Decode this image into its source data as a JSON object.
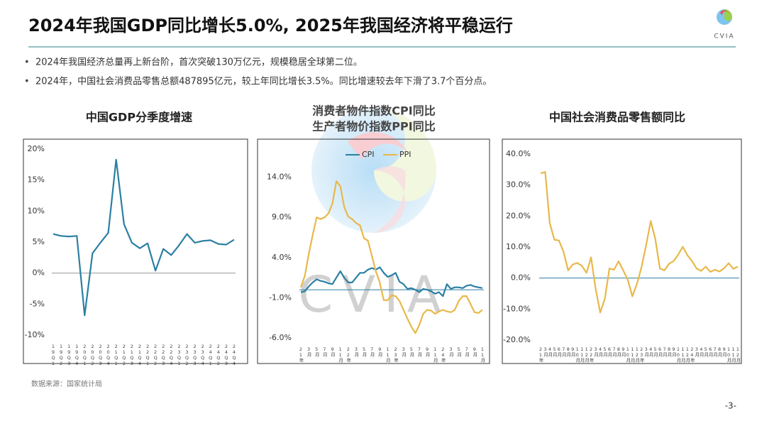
{
  "header": {
    "title": "2024年我国GDP同比增长5.0%, 2025年我国经济将平稳运行",
    "logo_text": "CVIA"
  },
  "bullets": [
    "2024年我国经济总量再上新台阶，首次突破130万亿元，规模稳居全球第二位。",
    "2024年，中国社会消费品零售总额487895亿元，较上年同比增长3.5%。同比增速较去年下滑了3.7个百分点。"
  ],
  "source": "数据来源：国家统计局",
  "page_number": "-3-",
  "chart_data": [
    {
      "type": "line",
      "title": "中国GDP分季度增速",
      "color": "#2b7fa3",
      "categories": [
        "19Q1",
        "19Q2",
        "19Q3",
        "19Q4",
        "20Q1",
        "20Q2",
        "20Q3",
        "20Q4",
        "21Q1",
        "21Q2",
        "21Q3",
        "21Q4",
        "22Q1",
        "22Q2",
        "22Q3",
        "22Q4",
        "23Q1",
        "23Q2",
        "23Q3",
        "23Q4",
        "24Q1",
        "24Q2",
        "24Q3",
        "24Q4"
      ],
      "values": [
        6.3,
        6.0,
        5.9,
        6.0,
        -6.8,
        3.2,
        4.9,
        6.5,
        18.3,
        7.9,
        4.9,
        4.0,
        4.8,
        0.4,
        3.9,
        2.9,
        4.5,
        6.3,
        4.9,
        5.2,
        5.3,
        4.7,
        4.6,
        5.4
      ],
      "ylim": [
        -10,
        20
      ],
      "yticks": [
        {
          "value": -10,
          "label": "-10%"
        },
        {
          "value": -5,
          "label": "-5%"
        },
        {
          "value": 0,
          "label": "0%"
        },
        {
          "value": 5,
          "label": "5%"
        },
        {
          "value": 10,
          "label": "10%"
        },
        {
          "value": 15,
          "label": "15%"
        },
        {
          "value": 20,
          "label": "20%"
        }
      ]
    },
    {
      "type": "line",
      "title": "消费者物件指数CPI同比",
      "subtitle": "生产者物价指数PPI同比",
      "categories": [
        "21年",
        null,
        "3月",
        null,
        "5月",
        null,
        "7月",
        null,
        "9月",
        null,
        "11月",
        null,
        "22年",
        null,
        "3月",
        null,
        "5月",
        null,
        "7月",
        null,
        "9月",
        null,
        "11月",
        null,
        "23年",
        null,
        "3月",
        null,
        "5月",
        null,
        "7月",
        null,
        "9月",
        null,
        "11月",
        null,
        "24年",
        null,
        "3月",
        null,
        "5月",
        null,
        "7月",
        null,
        "9月",
        null,
        "11月"
      ],
      "series": [
        {
          "name": "CPI",
          "color": "#2b7fa3",
          "values": [
            -0.3,
            -0.2,
            0.4,
            0.9,
            1.3,
            1.1,
            1.0,
            0.8,
            0.7,
            1.5,
            2.3,
            1.5,
            0.9,
            0.9,
            1.5,
            2.1,
            2.1,
            2.5,
            2.7,
            2.5,
            2.8,
            2.1,
            1.6,
            1.8,
            2.1,
            1.0,
            0.7,
            0.1,
            0.2,
            0.0,
            -0.3,
            0.1,
            0.0,
            -0.2,
            -0.5,
            -0.3,
            -0.8,
            0.7,
            0.1,
            0.3,
            0.3,
            0.2,
            0.5,
            0.6,
            0.4,
            0.3,
            0.2
          ]
        },
        {
          "name": "PPI",
          "color": "#e8b84a",
          "values": [
            0.3,
            1.7,
            4.4,
            6.8,
            9.0,
            8.8,
            9.0,
            9.5,
            10.7,
            13.5,
            12.9,
            10.3,
            9.1,
            8.8,
            8.3,
            8.0,
            6.4,
            6.1,
            4.2,
            2.3,
            0.9,
            -1.3,
            -1.3,
            -0.7,
            -0.8,
            -1.4,
            -2.5,
            -3.6,
            -4.6,
            -5.4,
            -4.4,
            -3.0,
            -2.5,
            -2.6,
            -3.0,
            -2.7,
            -2.5,
            -2.7,
            -2.8,
            -2.5,
            -1.4,
            -0.8,
            -0.8,
            -1.8,
            -2.8,
            -2.9,
            -2.5
          ]
        }
      ],
      "ylim": [
        -6,
        19
      ],
      "yticks": [
        {
          "value": -6,
          "label": "-6.0%"
        },
        {
          "value": -1,
          "label": "-1.0%"
        },
        {
          "value": 4,
          "label": "4.0%"
        },
        {
          "value": 9,
          "label": "9.0%"
        },
        {
          "value": 14,
          "label": "14.0%"
        }
      ],
      "legend": "top"
    },
    {
      "type": "line",
      "title": "中国社会消费品零售额同比",
      "color": "#e8b84a",
      "categories": [
        "21年",
        "3月",
        "4月",
        "5月",
        "6月",
        "7月",
        "8月",
        "9月",
        "10月",
        "11月",
        "12月",
        "22年",
        "3月",
        "4月",
        "5月",
        "6月",
        "7月",
        "8月",
        "9月",
        "10月",
        "11月",
        "12月",
        "23年",
        "3月",
        "4月",
        "5月",
        "6月",
        "7月",
        "8月",
        "9月",
        "10月",
        "11月",
        "12月",
        "24年",
        "3月",
        "4月",
        "5月",
        "6月",
        "7月",
        "8月",
        "9月",
        "10月",
        "11月",
        "12月"
      ],
      "values": [
        33.8,
        34.2,
        17.7,
        12.4,
        12.1,
        8.5,
        2.5,
        4.4,
        4.9,
        3.9,
        1.7,
        6.7,
        -3.5,
        -11.1,
        -6.7,
        3.1,
        2.7,
        5.4,
        2.5,
        -0.5,
        -5.9,
        -1.8,
        3.5,
        10.6,
        18.4,
        12.7,
        3.1,
        2.5,
        4.6,
        5.5,
        7.6,
        10.1,
        7.4,
        5.5,
        3.1,
        2.3,
        3.7,
        2.0,
        2.7,
        2.1,
        3.2,
        4.8,
        3.0,
        3.7
      ],
      "ylim": [
        -20,
        40
      ],
      "yticks": [
        {
          "value": -20,
          "label": "-20.0%"
        },
        {
          "value": -10,
          "label": "-10.0%"
        },
        {
          "value": 0,
          "label": "0.0%"
        },
        {
          "value": 10,
          "label": "10.0%"
        },
        {
          "value": 20,
          "label": "20.0%"
        },
        {
          "value": 30,
          "label": "30.0%"
        },
        {
          "value": 40,
          "label": "40.0%"
        }
      ]
    }
  ]
}
